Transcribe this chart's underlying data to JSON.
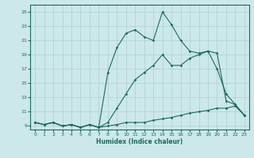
{
  "xlabel": "Humidex (Indice chaleur)",
  "bg_color": "#cce8e8",
  "grid_color": "#b0d4d4",
  "line_color": "#1a6b5a",
  "xlim": [
    -0.5,
    23.5
  ],
  "ylim": [
    8.5,
    26
  ],
  "xticks": [
    0,
    1,
    2,
    3,
    4,
    5,
    6,
    7,
    8,
    9,
    10,
    11,
    12,
    13,
    14,
    15,
    16,
    17,
    18,
    19,
    20,
    21,
    22,
    23
  ],
  "yticks": [
    9,
    11,
    13,
    15,
    17,
    19,
    21,
    23,
    25
  ],
  "line1_x": [
    0,
    1,
    2,
    3,
    4,
    5,
    6,
    7,
    8,
    9,
    10,
    11,
    12,
    13,
    14,
    15,
    16,
    17,
    18,
    19,
    20,
    21,
    22,
    23
  ],
  "line1_y": [
    9.5,
    9.2,
    9.5,
    9.0,
    9.2,
    8.8,
    9.2,
    8.8,
    9.0,
    9.2,
    9.5,
    9.5,
    9.5,
    9.8,
    10.0,
    10.2,
    10.5,
    10.8,
    11.0,
    11.2,
    11.5,
    11.5,
    11.8,
    10.5
  ],
  "line2_x": [
    0,
    1,
    2,
    3,
    4,
    5,
    6,
    7,
    8,
    9,
    10,
    11,
    12,
    13,
    14,
    15,
    16,
    17,
    18,
    19,
    20,
    21,
    22,
    23
  ],
  "line2_y": [
    9.5,
    9.2,
    9.5,
    9.0,
    9.2,
    8.8,
    9.2,
    8.8,
    9.5,
    11.5,
    13.5,
    15.5,
    16.5,
    17.5,
    19.0,
    17.5,
    17.5,
    18.5,
    19.0,
    19.5,
    17.0,
    13.5,
    12.0,
    10.5
  ],
  "line3_x": [
    0,
    1,
    2,
    3,
    4,
    5,
    6,
    7,
    8,
    9,
    10,
    11,
    12,
    13,
    14,
    15,
    16,
    17,
    18,
    19,
    20,
    21,
    22,
    23
  ],
  "line3_y": [
    9.5,
    9.2,
    9.5,
    9.0,
    9.2,
    8.8,
    9.2,
    8.8,
    16.5,
    20.0,
    22.0,
    22.5,
    21.5,
    21.0,
    25.0,
    23.2,
    21.0,
    19.5,
    19.2,
    19.5,
    19.2,
    12.5,
    12.0,
    10.5
  ]
}
